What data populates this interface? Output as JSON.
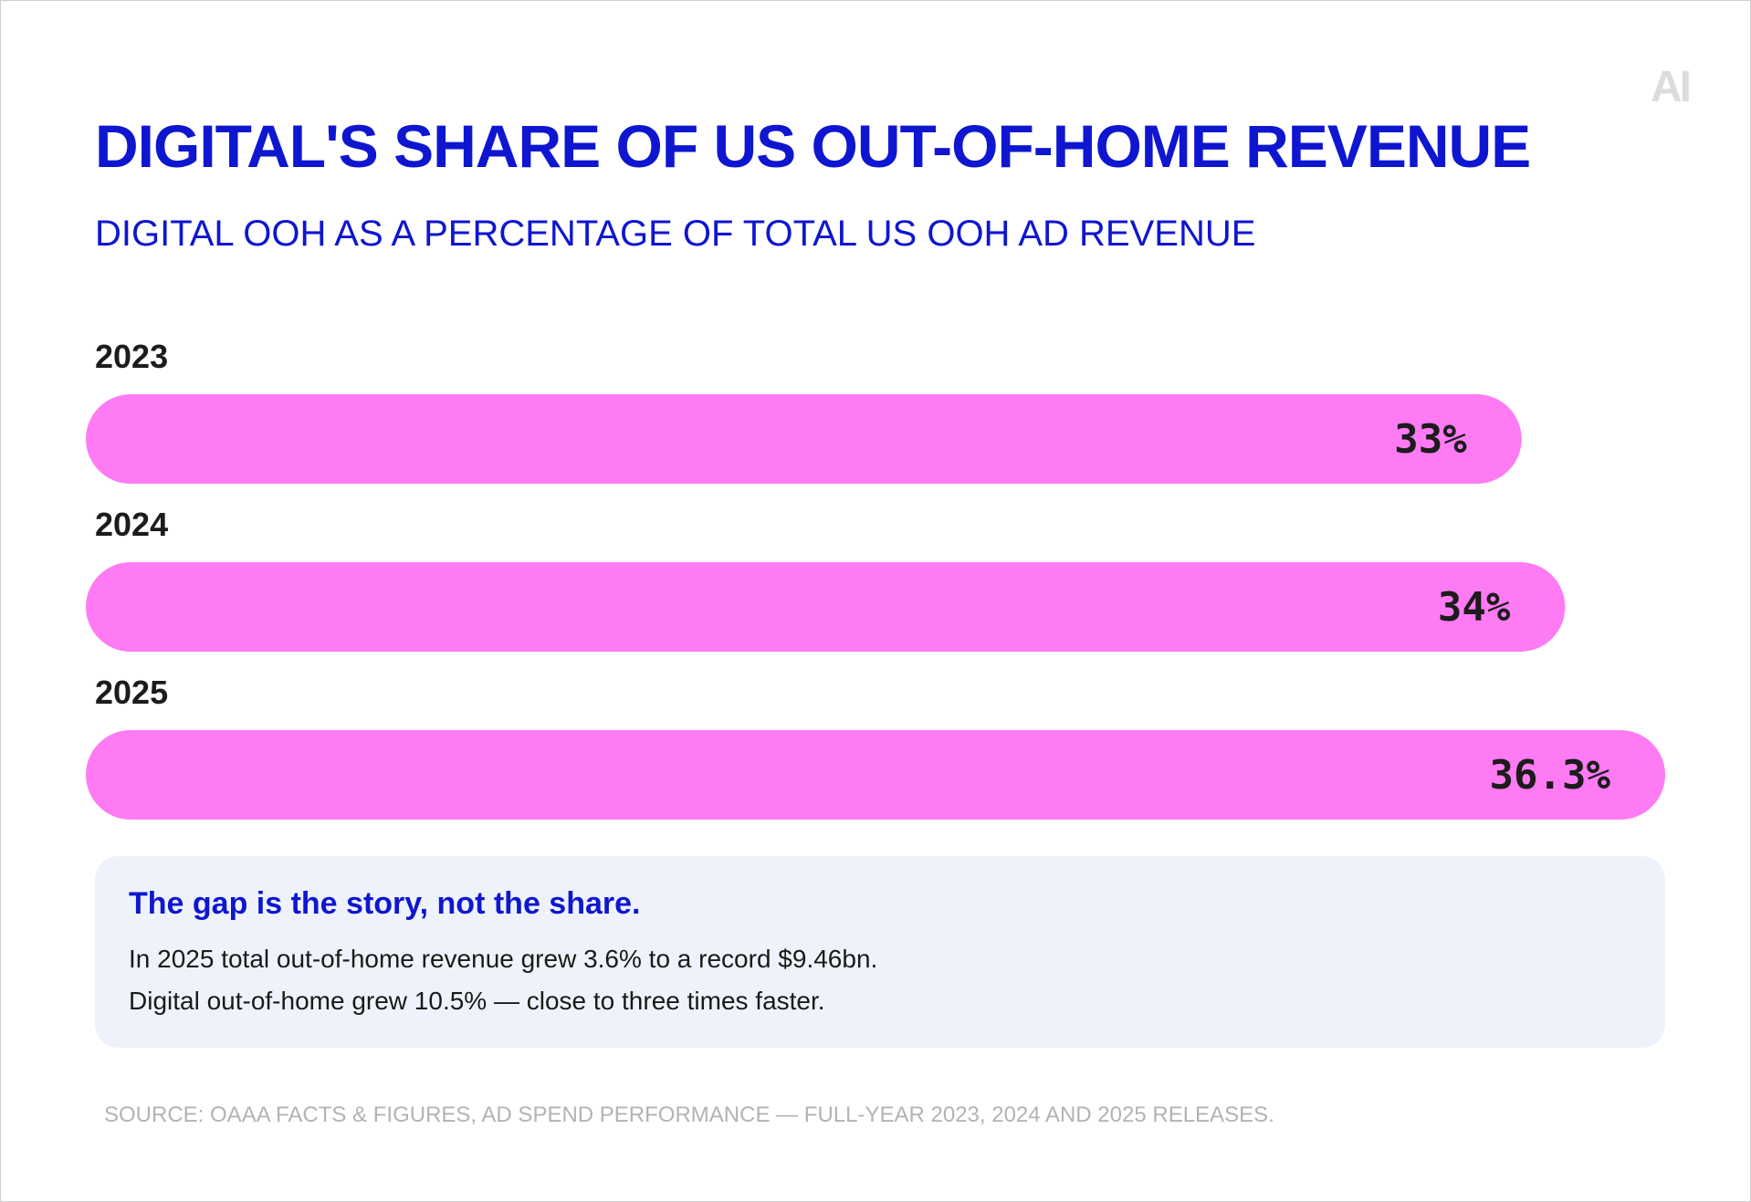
{
  "logo": "AI",
  "chart_data": {
    "type": "bar",
    "orientation": "horizontal",
    "title": "DIGITAL'S SHARE OF US OUT-OF-HOME REVENUE",
    "subtitle": "DIGITAL OOH AS A PERCENTAGE OF TOTAL US OOH AD REVENUE",
    "categories": [
      "2023",
      "2024",
      "2025"
    ],
    "values": [
      33,
      34,
      36.3
    ],
    "value_labels": [
      "33%",
      "34%",
      "36.3%"
    ],
    "unit": "%",
    "bar_color": "#ff7bf3",
    "grid": false,
    "legend": false
  },
  "callout": {
    "heading": "The gap is the story, not the share.",
    "line1": "In 2025 total out-of-home revenue grew 3.6% to a record $9.46bn.",
    "line2": "Digital out-of-home grew 10.5% — close to three times faster."
  },
  "source": "SOURCE: OAAA FACTS & FIGURES, AD SPEND PERFORMANCE — FULL-YEAR 2023, 2024 AND 2025 RELEASES.",
  "colors": {
    "accent": "#0f16d0",
    "bar": "#ff7bf3",
    "callout_bg": "#eef3fb",
    "source_text": "#b3b3b3"
  }
}
